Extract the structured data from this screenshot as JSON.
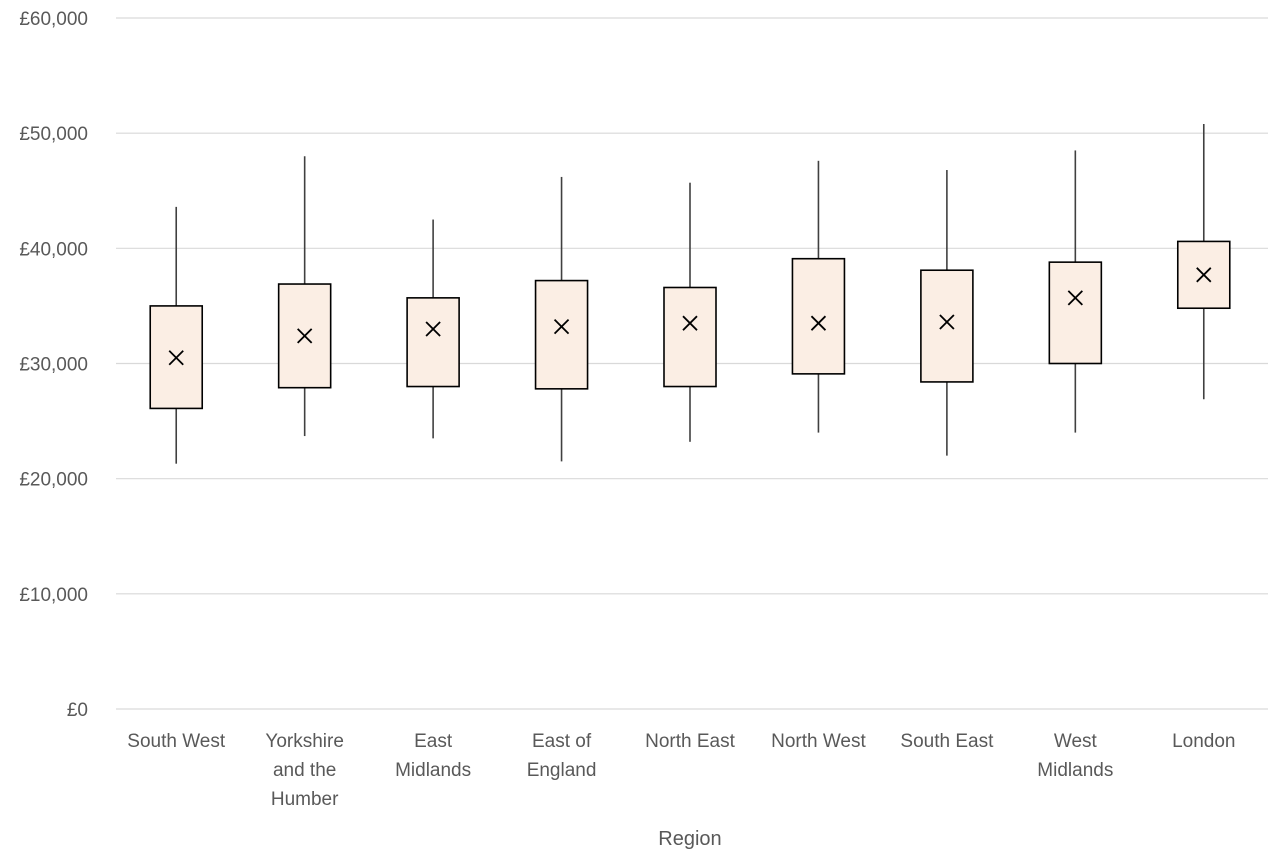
{
  "chart_data": {
    "type": "boxplot",
    "title": "",
    "xlabel": "Region",
    "ylabel": "",
    "ylim": [
      0,
      60000
    ],
    "yticks": [
      0,
      10000,
      20000,
      30000,
      40000,
      50000,
      60000
    ],
    "ytick_labels": [
      "£0",
      "£10,000",
      "£20,000",
      "£30,000",
      "£40,000",
      "£50,000",
      "£60,000"
    ],
    "grid": true,
    "legend": "none",
    "box_fill": "#fbeee4",
    "categories": [
      [
        "South West"
      ],
      [
        "Yorkshire",
        "and the",
        "Humber"
      ],
      [
        "East",
        "Midlands"
      ],
      [
        "East of",
        "England"
      ],
      [
        "North East"
      ],
      [
        "North West"
      ],
      [
        "South East"
      ],
      [
        "West",
        "Midlands"
      ],
      [
        "London"
      ]
    ],
    "series": [
      {
        "boxes": [
          {
            "min": 21300,
            "q1": 26100,
            "q3": 35000,
            "max": 43600,
            "mean": 30500
          },
          {
            "min": 23700,
            "q1": 27900,
            "q3": 36900,
            "max": 48000,
            "mean": 32400
          },
          {
            "min": 23500,
            "q1": 28000,
            "q3": 35700,
            "max": 42500,
            "mean": 33000
          },
          {
            "min": 21500,
            "q1": 27800,
            "q3": 37200,
            "max": 46200,
            "mean": 33200
          },
          {
            "min": 23200,
            "q1": 28000,
            "q3": 36600,
            "max": 45700,
            "mean": 33500
          },
          {
            "min": 24000,
            "q1": 29100,
            "q3": 39100,
            "max": 47600,
            "mean": 33500
          },
          {
            "min": 22000,
            "q1": 28400,
            "q3": 38100,
            "max": 46800,
            "mean": 33600
          },
          {
            "min": 24000,
            "q1": 30000,
            "q3": 38800,
            "max": 48500,
            "mean": 35700
          },
          {
            "min": 26900,
            "q1": 34800,
            "q3": 40600,
            "max": 50800,
            "mean": 37700
          }
        ]
      }
    ]
  }
}
